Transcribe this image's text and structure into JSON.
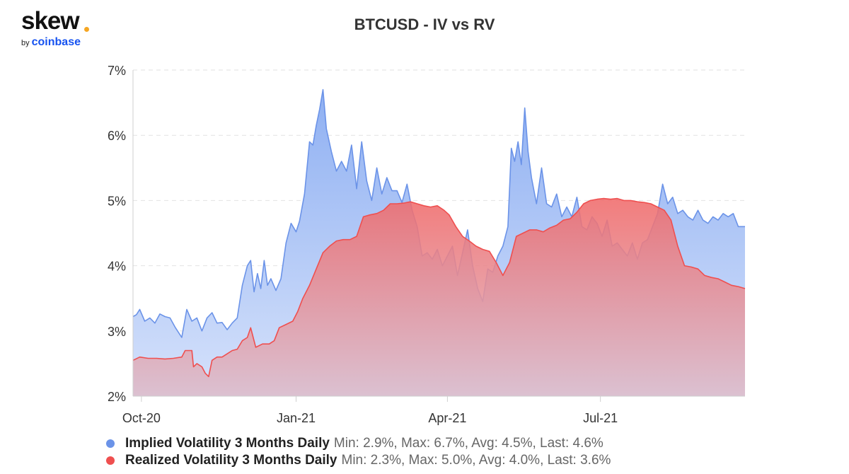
{
  "logo": {
    "main": "skew",
    "by": "by",
    "brand": "coinbase",
    "dot_color": "#f5a623",
    "brand_color": "#1652f0"
  },
  "chart_data": {
    "type": "area",
    "title": "BTCUSD - IV vs RV",
    "xlabel": "",
    "ylabel": "",
    "ylim": [
      2,
      7
    ],
    "yticks": [
      2,
      3,
      4,
      5,
      6,
      7
    ],
    "ytick_labels": [
      "2%",
      "3%",
      "4%",
      "5%",
      "6%",
      "7%"
    ],
    "xlim": [
      "2020-09-26",
      "2021-09-25"
    ],
    "xticks": [
      "2020-10-01",
      "2021-01-01",
      "2021-04-01",
      "2021-07-01"
    ],
    "xtick_labels": [
      "Oct-20",
      "Jan-21",
      "Apr-21",
      "Jul-21"
    ],
    "grid": true,
    "legend_position": "bottom-left",
    "series": [
      {
        "name": "Implied Volatility 3 Months Daily",
        "stats": "Min: 2.9%, Max: 6.7%, Avg: 4.5%, Last: 4.6%",
        "color": "#6b93e8",
        "fill_top": "#8fb0f2",
        "fill_bottom": "#d6e2fb",
        "points": [
          [
            "2020-09-26",
            3.22
          ],
          [
            "2020-09-28",
            3.25
          ],
          [
            "2020-09-30",
            3.33
          ],
          [
            "2020-10-03",
            3.15
          ],
          [
            "2020-10-06",
            3.2
          ],
          [
            "2020-10-09",
            3.12
          ],
          [
            "2020-10-12",
            3.26
          ],
          [
            "2020-10-15",
            3.22
          ],
          [
            "2020-10-18",
            3.2
          ],
          [
            "2020-10-21",
            3.06
          ],
          [
            "2020-10-25",
            2.9
          ],
          [
            "2020-10-28",
            3.33
          ],
          [
            "2020-10-31",
            3.15
          ],
          [
            "2020-11-03",
            3.2
          ],
          [
            "2020-11-06",
            3.0
          ],
          [
            "2020-11-09",
            3.2
          ],
          [
            "2020-11-12",
            3.28
          ],
          [
            "2020-11-15",
            3.12
          ],
          [
            "2020-11-18",
            3.13
          ],
          [
            "2020-11-21",
            3.02
          ],
          [
            "2020-11-24",
            3.12
          ],
          [
            "2020-11-27",
            3.2
          ],
          [
            "2020-11-30",
            3.7
          ],
          [
            "2020-12-03",
            4.0
          ],
          [
            "2020-12-05",
            4.08
          ],
          [
            "2020-12-07",
            3.6
          ],
          [
            "2020-12-09",
            3.88
          ],
          [
            "2020-12-11",
            3.65
          ],
          [
            "2020-12-13",
            4.08
          ],
          [
            "2020-12-15",
            3.7
          ],
          [
            "2020-12-17",
            3.8
          ],
          [
            "2020-12-20",
            3.62
          ],
          [
            "2020-12-23",
            3.8
          ],
          [
            "2020-12-26",
            4.35
          ],
          [
            "2020-12-29",
            4.65
          ],
          [
            "2021-01-01",
            4.52
          ],
          [
            "2021-01-03",
            4.68
          ],
          [
            "2021-01-06",
            5.1
          ],
          [
            "2021-01-09",
            5.9
          ],
          [
            "2021-01-11",
            5.85
          ],
          [
            "2021-01-13",
            6.15
          ],
          [
            "2021-01-15",
            6.4
          ],
          [
            "2021-01-17",
            6.7
          ],
          [
            "2021-01-19",
            6.1
          ],
          [
            "2021-01-22",
            5.75
          ],
          [
            "2021-01-25",
            5.45
          ],
          [
            "2021-01-28",
            5.6
          ],
          [
            "2021-01-31",
            5.45
          ],
          [
            "2021-02-03",
            5.85
          ],
          [
            "2021-02-06",
            5.18
          ],
          [
            "2021-02-09",
            5.9
          ],
          [
            "2021-02-12",
            5.3
          ],
          [
            "2021-02-15",
            5.0
          ],
          [
            "2021-02-18",
            5.5
          ],
          [
            "2021-02-21",
            5.1
          ],
          [
            "2021-02-24",
            5.35
          ],
          [
            "2021-02-27",
            5.15
          ],
          [
            "2021-03-02",
            5.15
          ],
          [
            "2021-03-05",
            4.97
          ],
          [
            "2021-03-08",
            5.25
          ],
          [
            "2021-03-11",
            4.85
          ],
          [
            "2021-03-14",
            4.6
          ],
          [
            "2021-03-17",
            4.15
          ],
          [
            "2021-03-20",
            4.2
          ],
          [
            "2021-03-23",
            4.1
          ],
          [
            "2021-03-26",
            4.25
          ],
          [
            "2021-03-29",
            4.0
          ],
          [
            "2021-04-01",
            4.15
          ],
          [
            "2021-04-04",
            4.3
          ],
          [
            "2021-04-07",
            3.85
          ],
          [
            "2021-04-10",
            4.2
          ],
          [
            "2021-04-13",
            4.55
          ],
          [
            "2021-04-16",
            4.0
          ],
          [
            "2021-04-19",
            3.65
          ],
          [
            "2021-04-22",
            3.45
          ],
          [
            "2021-04-25",
            3.95
          ],
          [
            "2021-04-28",
            3.9
          ],
          [
            "2021-05-01",
            4.15
          ],
          [
            "2021-05-04",
            4.3
          ],
          [
            "2021-05-07",
            4.6
          ],
          [
            "2021-05-09",
            5.8
          ],
          [
            "2021-05-11",
            5.6
          ],
          [
            "2021-05-13",
            5.9
          ],
          [
            "2021-05-15",
            5.55
          ],
          [
            "2021-05-17",
            6.42
          ],
          [
            "2021-05-19",
            5.75
          ],
          [
            "2021-05-21",
            5.35
          ],
          [
            "2021-05-24",
            4.95
          ],
          [
            "2021-05-27",
            5.5
          ],
          [
            "2021-05-30",
            4.95
          ],
          [
            "2021-06-02",
            4.9
          ],
          [
            "2021-06-05",
            5.1
          ],
          [
            "2021-06-08",
            4.75
          ],
          [
            "2021-06-11",
            4.9
          ],
          [
            "2021-06-14",
            4.75
          ],
          [
            "2021-06-17",
            5.05
          ],
          [
            "2021-06-20",
            4.6
          ],
          [
            "2021-06-23",
            4.55
          ],
          [
            "2021-06-26",
            4.75
          ],
          [
            "2021-06-29",
            4.65
          ],
          [
            "2021-07-02",
            4.45
          ],
          [
            "2021-07-05",
            4.7
          ],
          [
            "2021-07-08",
            4.3
          ],
          [
            "2021-07-11",
            4.35
          ],
          [
            "2021-07-14",
            4.25
          ],
          [
            "2021-07-17",
            4.15
          ],
          [
            "2021-07-20",
            4.35
          ],
          [
            "2021-07-23",
            4.1
          ],
          [
            "2021-07-26",
            4.35
          ],
          [
            "2021-07-29",
            4.4
          ],
          [
            "2021-08-01",
            4.6
          ],
          [
            "2021-08-04",
            4.8
          ],
          [
            "2021-08-07",
            5.25
          ],
          [
            "2021-08-10",
            4.95
          ],
          [
            "2021-08-13",
            5.05
          ],
          [
            "2021-08-16",
            4.8
          ],
          [
            "2021-08-19",
            4.85
          ],
          [
            "2021-08-22",
            4.75
          ],
          [
            "2021-08-25",
            4.7
          ],
          [
            "2021-08-28",
            4.85
          ],
          [
            "2021-08-31",
            4.7
          ],
          [
            "2021-09-03",
            4.65
          ],
          [
            "2021-09-06",
            4.75
          ],
          [
            "2021-09-09",
            4.7
          ],
          [
            "2021-09-12",
            4.8
          ],
          [
            "2021-09-15",
            4.75
          ],
          [
            "2021-09-18",
            4.8
          ],
          [
            "2021-09-21",
            4.6
          ],
          [
            "2021-09-25",
            4.6
          ]
        ]
      },
      {
        "name": "Realized Volatility 3 Months Daily",
        "stats": "Min: 2.3%, Max: 5.0%, Avg: 4.0%, Last: 3.6%",
        "color": "#ef4f4f",
        "fill_top": "#f06b6b",
        "fill_bottom": "#dcbccb",
        "points": [
          [
            "2020-09-26",
            2.55
          ],
          [
            "2020-09-30",
            2.6
          ],
          [
            "2020-10-05",
            2.58
          ],
          [
            "2020-10-10",
            2.58
          ],
          [
            "2020-10-15",
            2.57
          ],
          [
            "2020-10-20",
            2.58
          ],
          [
            "2020-10-25",
            2.6
          ],
          [
            "2020-10-27",
            2.7
          ],
          [
            "2020-10-31",
            2.7
          ],
          [
            "2020-11-01",
            2.45
          ],
          [
            "2020-11-03",
            2.5
          ],
          [
            "2020-11-06",
            2.45
          ],
          [
            "2020-11-08",
            2.35
          ],
          [
            "2020-11-10",
            2.3
          ],
          [
            "2020-11-12",
            2.55
          ],
          [
            "2020-11-15",
            2.6
          ],
          [
            "2020-11-18",
            2.6
          ],
          [
            "2020-11-21",
            2.65
          ],
          [
            "2020-11-24",
            2.7
          ],
          [
            "2020-11-27",
            2.72
          ],
          [
            "2020-11-30",
            2.85
          ],
          [
            "2020-12-03",
            2.9
          ],
          [
            "2020-12-05",
            3.05
          ],
          [
            "2020-12-08",
            2.75
          ],
          [
            "2020-12-12",
            2.8
          ],
          [
            "2020-12-16",
            2.8
          ],
          [
            "2020-12-19",
            2.85
          ],
          [
            "2020-12-22",
            3.05
          ],
          [
            "2020-12-26",
            3.1
          ],
          [
            "2020-12-30",
            3.15
          ],
          [
            "2021-01-02",
            3.3
          ],
          [
            "2021-01-05",
            3.5
          ],
          [
            "2021-01-09",
            3.7
          ],
          [
            "2021-01-13",
            3.95
          ],
          [
            "2021-01-17",
            4.2
          ],
          [
            "2021-01-21",
            4.3
          ],
          [
            "2021-01-25",
            4.38
          ],
          [
            "2021-01-29",
            4.4
          ],
          [
            "2021-02-02",
            4.4
          ],
          [
            "2021-02-06",
            4.45
          ],
          [
            "2021-02-10",
            4.75
          ],
          [
            "2021-02-14",
            4.78
          ],
          [
            "2021-02-18",
            4.8
          ],
          [
            "2021-02-22",
            4.85
          ],
          [
            "2021-02-26",
            4.95
          ],
          [
            "2021-03-02",
            4.95
          ],
          [
            "2021-03-06",
            4.96
          ],
          [
            "2021-03-10",
            4.98
          ],
          [
            "2021-03-14",
            4.95
          ],
          [
            "2021-03-18",
            4.92
          ],
          [
            "2021-03-22",
            4.9
          ],
          [
            "2021-03-26",
            4.92
          ],
          [
            "2021-03-30",
            4.85
          ],
          [
            "2021-04-02",
            4.78
          ],
          [
            "2021-04-06",
            4.6
          ],
          [
            "2021-04-10",
            4.45
          ],
          [
            "2021-04-14",
            4.38
          ],
          [
            "2021-04-18",
            4.3
          ],
          [
            "2021-04-22",
            4.25
          ],
          [
            "2021-04-26",
            4.22
          ],
          [
            "2021-04-30",
            4.05
          ],
          [
            "2021-05-04",
            3.85
          ],
          [
            "2021-05-08",
            4.05
          ],
          [
            "2021-05-12",
            4.45
          ],
          [
            "2021-05-16",
            4.5
          ],
          [
            "2021-05-20",
            4.55
          ],
          [
            "2021-05-24",
            4.55
          ],
          [
            "2021-05-28",
            4.52
          ],
          [
            "2021-06-01",
            4.58
          ],
          [
            "2021-06-05",
            4.62
          ],
          [
            "2021-06-09",
            4.7
          ],
          [
            "2021-06-13",
            4.72
          ],
          [
            "2021-06-17",
            4.82
          ],
          [
            "2021-06-21",
            4.95
          ],
          [
            "2021-06-25",
            5.0
          ],
          [
            "2021-06-29",
            5.02
          ],
          [
            "2021-07-03",
            5.03
          ],
          [
            "2021-07-07",
            5.02
          ],
          [
            "2021-07-11",
            5.03
          ],
          [
            "2021-07-15",
            5.0
          ],
          [
            "2021-07-19",
            5.0
          ],
          [
            "2021-07-23",
            4.98
          ],
          [
            "2021-07-27",
            4.97
          ],
          [
            "2021-07-31",
            4.95
          ],
          [
            "2021-08-04",
            4.9
          ],
          [
            "2021-08-08",
            4.85
          ],
          [
            "2021-08-12",
            4.7
          ],
          [
            "2021-08-16",
            4.3
          ],
          [
            "2021-08-20",
            4.0
          ],
          [
            "2021-08-24",
            3.98
          ],
          [
            "2021-08-28",
            3.95
          ],
          [
            "2021-09-01",
            3.85
          ],
          [
            "2021-09-05",
            3.82
          ],
          [
            "2021-09-09",
            3.8
          ],
          [
            "2021-09-13",
            3.75
          ],
          [
            "2021-09-17",
            3.7
          ],
          [
            "2021-09-21",
            3.68
          ],
          [
            "2021-09-25",
            3.65
          ]
        ]
      }
    ]
  }
}
